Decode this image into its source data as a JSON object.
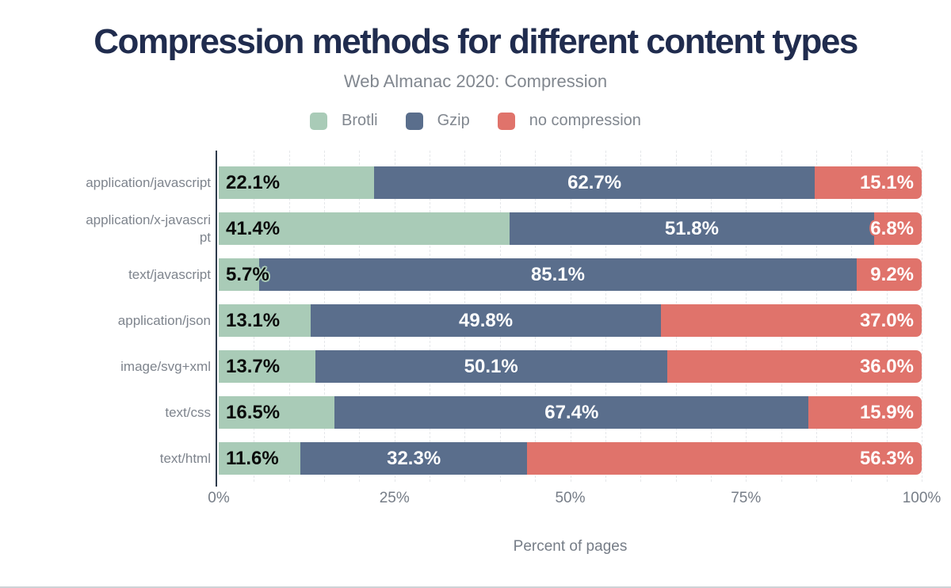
{
  "chart_data": {
    "type": "bar",
    "variant": "horizontal-stacked",
    "title": "Compression methods for different content types",
    "subtitle": "Web Almanac 2020: Compression",
    "xlabel": "Percent of pages",
    "xlim": [
      0,
      100
    ],
    "xticks": [
      {
        "label": "0%",
        "value": 0
      },
      {
        "label": "25%",
        "value": 25
      },
      {
        "label": "50%",
        "value": 50
      },
      {
        "label": "75%",
        "value": 75
      },
      {
        "label": "100%",
        "value": 100
      }
    ],
    "grid": true,
    "grid_interval_pct": 5,
    "legend_position": "top",
    "categories": [
      "application/javascript",
      "application/x-javascript",
      "text/javascript",
      "application/json",
      "image/svg+xml",
      "text/css",
      "text/html"
    ],
    "series": [
      {
        "name": "Brotli",
        "color": "#a9cbb7",
        "label_color": "#0a0a0a",
        "label_align": "start",
        "values": [
          22.1,
          41.4,
          5.7,
          13.1,
          13.7,
          16.5,
          11.6
        ]
      },
      {
        "name": "Gzip",
        "color": "#5a6e8c",
        "label_color": "#ffffff",
        "label_align": "center",
        "values": [
          62.7,
          51.8,
          85.1,
          49.8,
          50.1,
          67.4,
          32.3
        ]
      },
      {
        "name": "no compression",
        "color": "#e0736b",
        "label_color": "#ffffff",
        "label_align": "end",
        "values": [
          15.1,
          6.8,
          9.2,
          37.0,
          36.0,
          15.9,
          56.3
        ]
      }
    ]
  },
  "colors": {
    "background": "#ffffff",
    "title": "#202c4e",
    "muted_text": "#81878f",
    "category_label": "#7e848d",
    "tick_label": "#767d87",
    "axis_line": "#2e3b4c",
    "gridline": "#e5e7ea",
    "bottom_border": "#cdd2d6"
  }
}
